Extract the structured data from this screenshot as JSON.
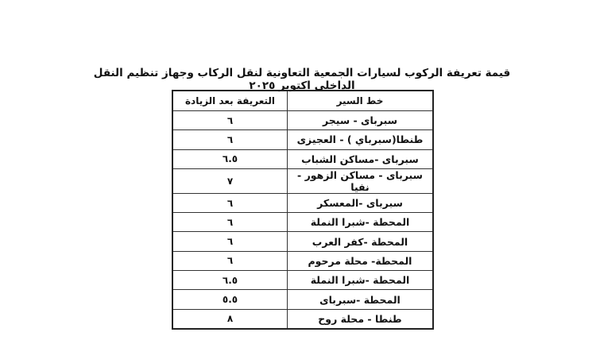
{
  "title": "قيمة تعريفة الركوب لسيارات الجمعية التعاونية لنقل الركاب وجهاز تنظيم النقل الداخلى اكتوبر ٢٠٢٥",
  "table": {
    "headers": {
      "route": "خط السير",
      "fare": "التعريفة بعد الزيادة"
    },
    "rows": [
      {
        "route": "سبرباى - سيجر",
        "fare": "٦"
      },
      {
        "route": "طنطا(سبرباي ) - العجيزى",
        "fare": "٦"
      },
      {
        "route": "سبرباى -مساكن الشباب",
        "fare": "٦.٥"
      },
      {
        "route": "سبرباى - مساكن الزهور - نفيا",
        "fare": "٧"
      },
      {
        "route": "سبرباى -المعسكر",
        "fare": "٦"
      },
      {
        "route": "المحطة -شبرا النملة",
        "fare": "٦"
      },
      {
        "route": "المحطة -كفر العرب",
        "fare": "٦"
      },
      {
        "route": "المحطة- محلة مرحوم",
        "fare": "٦"
      },
      {
        "route": "المحطة -شبرا النملة",
        "fare": "٦.٥"
      },
      {
        "route": "المحطة -سبرباى",
        "fare": "٥.٥"
      },
      {
        "route": "طنطا - محلة روح",
        "fare": "٨"
      }
    ]
  }
}
